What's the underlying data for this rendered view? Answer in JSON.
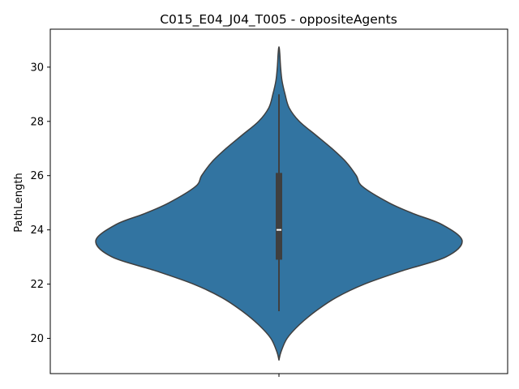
{
  "chart_data": {
    "type": "violin",
    "title": "C015_E04_J04_T005 - oppositeAgents",
    "xlabel": "",
    "ylabel": "PathLength",
    "ylim": [
      18.7,
      31.4
    ],
    "yticks": [
      20,
      22,
      24,
      26,
      28,
      30
    ],
    "grid": false,
    "color": "#3274a1",
    "edge_color": "#3f3f3f",
    "categories": [
      ""
    ],
    "violin_profile": {
      "y": [
        19.2,
        19.5,
        20.0,
        20.5,
        21.0,
        21.5,
        22.0,
        22.5,
        23.0,
        23.6,
        24.2,
        24.6,
        25.0,
        25.6,
        26.0,
        26.5,
        27.0,
        27.5,
        28.0,
        28.5,
        29.0,
        29.5,
        30.0,
        30.5,
        30.75
      ],
      "half_width": [
        0.0,
        0.01,
        0.04,
        0.1,
        0.18,
        0.28,
        0.42,
        0.61,
        0.82,
        0.9,
        0.8,
        0.66,
        0.54,
        0.41,
        0.38,
        0.33,
        0.26,
        0.18,
        0.1,
        0.05,
        0.03,
        0.015,
        0.008,
        0.004,
        0.0
      ]
    },
    "box": {
      "whisker_low": 21.0,
      "q1": 22.9,
      "median": 24.0,
      "q3": 26.1,
      "whisker_high": 29.0
    }
  }
}
